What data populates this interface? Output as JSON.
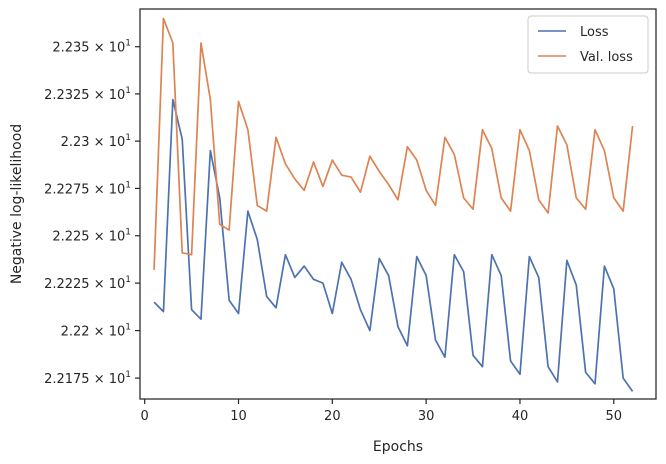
{
  "chart_data": {
    "type": "line",
    "title": "",
    "xlabel": "Epochs",
    "ylabel": "Negative log-likelihood",
    "xlim": [
      -0.5,
      54.5
    ],
    "ylim": [
      22.164,
      22.37
    ],
    "x_ticks": [
      0,
      10,
      20,
      30,
      40,
      50
    ],
    "x_tick_labels": [
      "0",
      "10",
      "20",
      "30",
      "40",
      "50"
    ],
    "y_ticks": [
      22.175,
      22.2,
      22.225,
      22.25,
      22.275,
      22.3,
      22.325,
      22.35
    ],
    "y_tick_labels": [
      {
        "base": "2.2175",
        "exp": "1"
      },
      {
        "base": "2.22",
        "exp": "1"
      },
      {
        "base": "2.2225",
        "exp": "1"
      },
      {
        "base": "2.225",
        "exp": "1"
      },
      {
        "base": "2.2275",
        "exp": "1"
      },
      {
        "base": "2.23",
        "exp": "1"
      },
      {
        "base": "2.2325",
        "exp": "1"
      },
      {
        "base": "2.235",
        "exp": "1"
      }
    ],
    "y_scale": "log",
    "grid": false,
    "legend_position": "top-right",
    "x": [
      1,
      2,
      3,
      4,
      5,
      6,
      7,
      8,
      9,
      10,
      11,
      12,
      13,
      14,
      15,
      16,
      17,
      18,
      19,
      20,
      21,
      22,
      23,
      24,
      25,
      26,
      27,
      28,
      29,
      30,
      31,
      32,
      33,
      34,
      35,
      36,
      37,
      38,
      39,
      40,
      41,
      42,
      43,
      44,
      45,
      46,
      47,
      48,
      49,
      50,
      51,
      52
    ],
    "series": [
      {
        "name": "Loss",
        "color": "#4c72b0",
        "values": [
          22.215,
          22.21,
          22.322,
          22.301,
          22.211,
          22.206,
          22.295,
          22.27,
          22.216,
          22.209,
          22.263,
          22.248,
          22.218,
          22.212,
          22.24,
          22.228,
          22.234,
          22.227,
          22.225,
          22.209,
          22.236,
          22.227,
          22.211,
          22.2,
          22.238,
          22.229,
          22.202,
          22.192,
          22.239,
          22.229,
          22.195,
          22.186,
          22.24,
          22.231,
          22.187,
          22.181,
          22.24,
          22.229,
          22.184,
          22.177,
          22.239,
          22.228,
          22.181,
          22.173,
          22.237,
          22.224,
          22.178,
          22.172,
          22.234,
          22.222,
          22.175,
          22.168
        ]
      },
      {
        "name": "Val. loss",
        "color": "#dd8452",
        "values": [
          22.232,
          22.365,
          22.352,
          22.241,
          22.24,
          22.352,
          22.322,
          22.256,
          22.253,
          22.321,
          22.306,
          22.266,
          22.263,
          22.302,
          22.288,
          22.28,
          22.274,
          22.289,
          22.276,
          22.29,
          22.282,
          22.281,
          22.273,
          22.292,
          22.284,
          22.277,
          22.269,
          22.297,
          22.29,
          22.274,
          22.266,
          22.302,
          22.293,
          22.27,
          22.264,
          22.306,
          22.296,
          22.27,
          22.263,
          22.306,
          22.295,
          22.269,
          22.262,
          22.308,
          22.298,
          22.27,
          22.264,
          22.306,
          22.295,
          22.27,
          22.263,
          22.308
        ]
      }
    ]
  }
}
